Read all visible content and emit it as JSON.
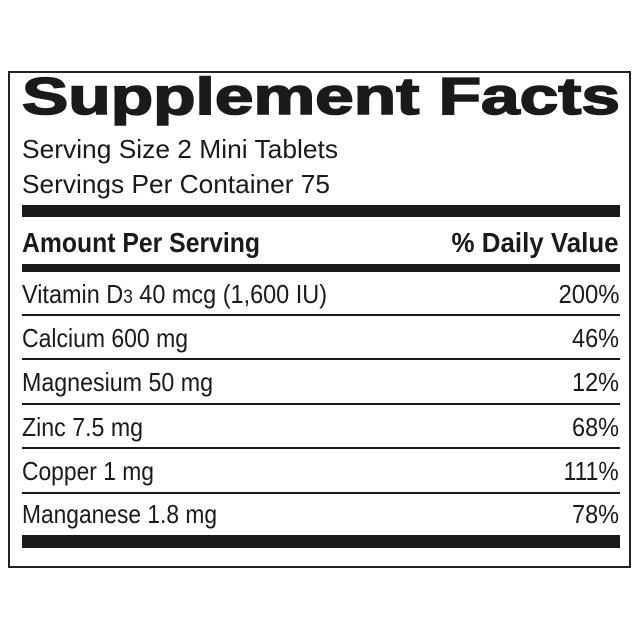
{
  "title": "Supplement Facts",
  "serving_size": "Serving Size 2 Mini Tablets",
  "servings_per_container": "Servings Per Container 75",
  "header": {
    "amount": "Amount Per Serving",
    "daily_value": "% Daily Value"
  },
  "rows": [
    {
      "nutrient": "Vitamin D3 40 mcg (1,600 IU)",
      "dv": "200%"
    },
    {
      "nutrient": "Calcium 600 mg",
      "dv": "46%"
    },
    {
      "nutrient": "Magnesium 50 mg",
      "dv": "12%"
    },
    {
      "nutrient": "Zinc 7.5 mg",
      "dv": "68%"
    },
    {
      "nutrient": "Copper 1 mg",
      "dv": "111%"
    },
    {
      "nutrient": "Manganese 1.8 mg",
      "dv": "78%"
    }
  ]
}
